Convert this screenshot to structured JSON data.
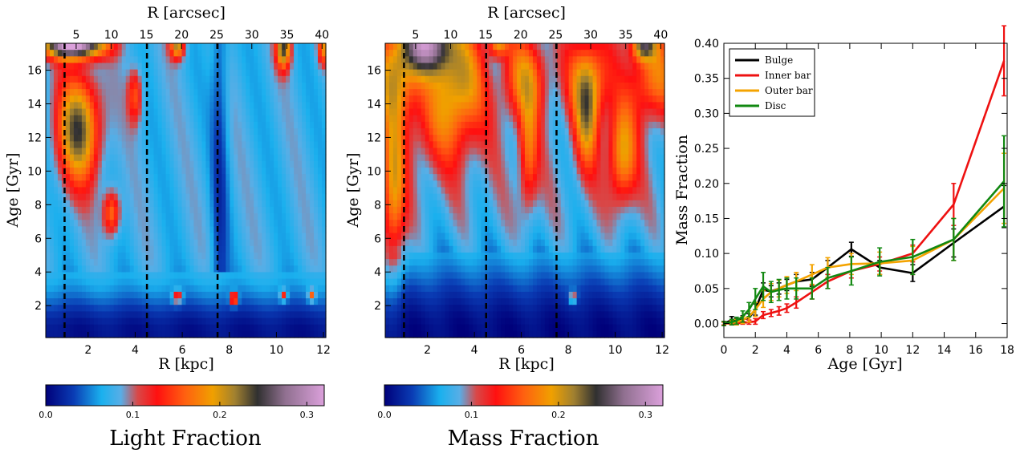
{
  "colors": {
    "bulge": "#000000",
    "inner_bar": "#ee1111",
    "outer_bar": "#f4a300",
    "disc": "#118811"
  },
  "chart_data": [
    {
      "type": "heatmap",
      "panel": "light",
      "xlabel": "R [kpc]",
      "ylabel": "Age [Gyr]",
      "top_xlabel": "R [arcsec]",
      "xlim": [
        0.2,
        12.1
      ],
      "ylim": [
        0.1,
        17.6
      ],
      "xticks": [
        2,
        4,
        6,
        8,
        10,
        12
      ],
      "yticks": [
        2,
        4,
        6,
        8,
        10,
        12,
        14,
        16
      ],
      "top_ticks": [
        5,
        10,
        15,
        20,
        25,
        30,
        35,
        40
      ],
      "arcsec_per_kpc": 3.35,
      "dashed_lines_kpc": [
        1.0,
        4.5,
        7.5
      ],
      "colorbar": {
        "label": "Light Fraction",
        "range": [
          0.0,
          0.32
        ],
        "ticks": [
          0.0,
          0.1,
          0.2,
          0.3
        ],
        "tick_labels": [
          "0.0",
          "0.1",
          "0.2",
          "0.3"
        ]
      }
    },
    {
      "type": "heatmap",
      "panel": "mass",
      "xlabel": "R [kpc]",
      "ylabel": "Age [Gyr]",
      "top_xlabel": "R [arcsec]",
      "xlim": [
        0.2,
        12.1
      ],
      "ylim": [
        0.1,
        17.6
      ],
      "xticks": [
        2,
        4,
        6,
        8,
        10,
        12
      ],
      "yticks": [
        2,
        4,
        6,
        8,
        10,
        12,
        14,
        16
      ],
      "top_ticks": [
        5,
        10,
        15,
        20,
        25,
        30,
        35,
        40
      ],
      "arcsec_per_kpc": 3.35,
      "dashed_lines_kpc": [
        1.0,
        4.5,
        7.5
      ],
      "colorbar": {
        "label": "Mass Fraction",
        "range": [
          0.0,
          0.32
        ],
        "ticks": [
          0.0,
          0.1,
          0.2,
          0.3
        ],
        "tick_labels": [
          "0.0",
          "0.1",
          "0.2",
          "0.3"
        ]
      }
    },
    {
      "type": "line",
      "xlabel": "Age [Gyr]",
      "ylabel": "Mass Fraction",
      "xlim": [
        0,
        18
      ],
      "ylim": [
        -0.02,
        0.4
      ],
      "xticks": [
        0,
        2,
        4,
        6,
        8,
        10,
        12,
        14,
        16,
        18
      ],
      "yticks": [
        0.0,
        0.05,
        0.1,
        0.15,
        0.2,
        0.25,
        0.3,
        0.35,
        0.4
      ],
      "ytick_labels": [
        "0.00",
        "0.05",
        "0.10",
        "0.15",
        "0.20",
        "0.25",
        "0.30",
        "0.35",
        "0.40"
      ],
      "legend_position": "top-left",
      "series": [
        {
          "name": "Bulge",
          "color": "#000000",
          "x": [
            0.0,
            0.5,
            0.8,
            1.2,
            1.6,
            2.0,
            2.5,
            3.0,
            3.5,
            4.0,
            4.6,
            5.6,
            6.6,
            8.1,
            9.9,
            12.0,
            14.6,
            17.8
          ],
          "y": [
            0.0,
            0.005,
            0.003,
            0.006,
            0.008,
            0.02,
            0.048,
            0.046,
            0.05,
            0.055,
            0.06,
            0.063,
            0.08,
            0.106,
            0.08,
            0.072,
            0.115,
            0.167
          ],
          "err": [
            0.003,
            0.005,
            0.004,
            0.005,
            0.006,
            0.008,
            0.01,
            0.008,
            0.008,
            0.008,
            0.01,
            0.01,
            0.01,
            0.01,
            0.01,
            0.012,
            0.02,
            0.03
          ]
        },
        {
          "name": "Inner bar",
          "color": "#ee1111",
          "x": [
            0.0,
            0.5,
            0.8,
            1.2,
            1.6,
            2.0,
            2.5,
            3.0,
            3.5,
            4.0,
            4.6,
            5.6,
            6.6,
            8.1,
            9.9,
            12.0,
            14.6,
            17.8
          ],
          "y": [
            0.0,
            0.0,
            0.0,
            0.001,
            0.002,
            0.003,
            0.012,
            0.015,
            0.018,
            0.022,
            0.03,
            0.045,
            0.06,
            0.075,
            0.085,
            0.1,
            0.17,
            0.375
          ],
          "err": [
            0.002,
            0.002,
            0.002,
            0.002,
            0.003,
            0.004,
            0.005,
            0.005,
            0.006,
            0.006,
            0.008,
            0.01,
            0.01,
            0.01,
            0.01,
            0.012,
            0.03,
            0.05
          ]
        },
        {
          "name": "Outer bar",
          "color": "#f4a300",
          "x": [
            0.0,
            0.5,
            0.8,
            1.2,
            1.6,
            2.0,
            2.5,
            3.0,
            3.5,
            4.0,
            4.6,
            5.6,
            6.6,
            8.1,
            9.9,
            12.0,
            14.6,
            17.8
          ],
          "y": [
            0.0,
            0.001,
            0.002,
            0.005,
            0.01,
            0.02,
            0.035,
            0.045,
            0.05,
            0.055,
            0.06,
            0.07,
            0.08,
            0.085,
            0.086,
            0.09,
            0.12,
            0.193
          ],
          "err": [
            0.003,
            0.003,
            0.004,
            0.005,
            0.008,
            0.01,
            0.012,
            0.012,
            0.012,
            0.012,
            0.013,
            0.014,
            0.014,
            0.015,
            0.016,
            0.02,
            0.03,
            0.05
          ]
        },
        {
          "name": "Disc",
          "color": "#118811",
          "x": [
            0.0,
            0.5,
            0.8,
            1.2,
            1.6,
            2.0,
            2.5,
            3.0,
            3.5,
            4.0,
            4.6,
            5.6,
            6.6,
            8.1,
            9.9,
            12.0,
            14.6,
            17.8
          ],
          "y": [
            0.0,
            0.002,
            0.004,
            0.01,
            0.02,
            0.035,
            0.053,
            0.045,
            0.048,
            0.05,
            0.05,
            0.05,
            0.065,
            0.075,
            0.088,
            0.095,
            0.12,
            0.203
          ],
          "err": [
            0.003,
            0.004,
            0.005,
            0.008,
            0.01,
            0.015,
            0.02,
            0.015,
            0.015,
            0.015,
            0.015,
            0.015,
            0.015,
            0.02,
            0.02,
            0.025,
            0.03,
            0.065
          ]
        }
      ]
    }
  ]
}
